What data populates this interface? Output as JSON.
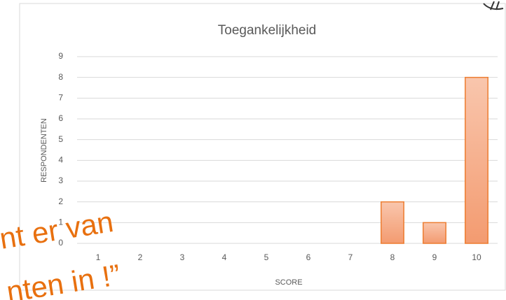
{
  "chart_data": {
    "type": "bar",
    "title": "Toegankelijkheid",
    "x_label": "SCORE",
    "y_label": "RESPONDENTEN",
    "categories": [
      "1",
      "2",
      "3",
      "4",
      "5",
      "6",
      "7",
      "8",
      "9",
      "10"
    ],
    "values": [
      0,
      0,
      0,
      0,
      0,
      0,
      0,
      2,
      1,
      8
    ],
    "color": "#f5a882",
    "edge_color": "#ed7d31",
    "ylim": [
      0,
      9
    ],
    "yticks": [
      0,
      1,
      2,
      3,
      4,
      5,
      6,
      7,
      8,
      9
    ],
    "grid": true,
    "annotations": [
      "nt er van",
      "nten in !”"
    ]
  }
}
